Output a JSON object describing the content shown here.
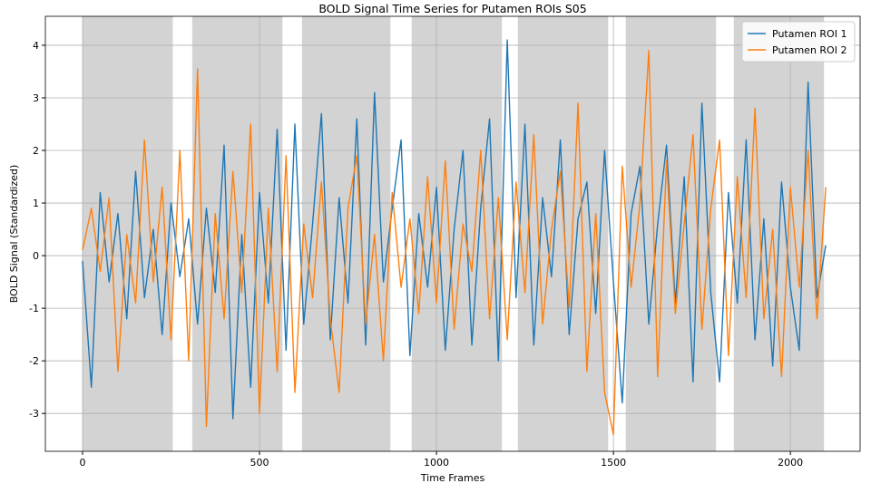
{
  "chart_data": {
    "type": "line",
    "title": "BOLD Signal Time Series for Putamen ROIs S05",
    "x_label": "Time Frames",
    "y_label": "BOLD Signal (Standardized)",
    "x": [
      0,
      25,
      50,
      75,
      100,
      125,
      150,
      175,
      200,
      225,
      250,
      275,
      300,
      325,
      350,
      375,
      400,
      425,
      450,
      475,
      500,
      525,
      550,
      575,
      600,
      625,
      650,
      675,
      700,
      725,
      750,
      775,
      800,
      825,
      850,
      875,
      900,
      925,
      950,
      975,
      1000,
      1025,
      1050,
      1075,
      1100,
      1125,
      1150,
      1175,
      1200,
      1225,
      1250,
      1275,
      1300,
      1325,
      1350,
      1375,
      1400,
      1425,
      1450,
      1475,
      1500,
      1525,
      1550,
      1575,
      1600,
      1625,
      1650,
      1675,
      1700,
      1725,
      1750,
      1775,
      1800,
      1825,
      1850,
      1875,
      1900,
      1925,
      1950,
      1975,
      2000,
      2025,
      2050,
      2075,
      2100
    ],
    "series": [
      {
        "name": "Putamen ROI 1",
        "color": "#1f77b4",
        "values": [
          -0.1,
          -2.5,
          1.2,
          -0.5,
          0.8,
          -1.2,
          1.6,
          -0.8,
          0.5,
          -1.5,
          1.0,
          -0.4,
          0.7,
          -1.3,
          0.9,
          -0.7,
          2.1,
          -3.1,
          0.4,
          -2.5,
          1.2,
          -0.9,
          2.4,
          -1.8,
          2.5,
          -1.3,
          0.6,
          2.7,
          -1.6,
          1.1,
          -0.9,
          2.6,
          -1.7,
          3.1,
          -0.5,
          0.9,
          2.2,
          -1.9,
          0.8,
          -0.6,
          1.3,
          -1.8,
          0.5,
          2.0,
          -1.7,
          0.9,
          2.6,
          -2.0,
          4.1,
          -0.8,
          2.5,
          -1.7,
          1.1,
          -0.4,
          2.2,
          -1.5,
          0.7,
          1.4,
          -1.1,
          2.0,
          -0.5,
          -2.8,
          0.8,
          1.7,
          -1.3,
          0.6,
          2.1,
          -0.9,
          1.5,
          -2.4,
          2.9,
          -0.7,
          -2.4,
          1.2,
          -0.9,
          2.2,
          -1.6,
          0.7,
          -2.1,
          1.4,
          -0.6,
          -1.8,
          3.3,
          -0.8,
          0.2
        ]
      },
      {
        "name": "Putamen ROI 2",
        "color": "#ff7f0e",
        "values": [
          0.1,
          0.9,
          -0.3,
          1.1,
          -2.2,
          0.4,
          -0.9,
          2.2,
          -0.5,
          1.3,
          -1.6,
          2.0,
          -2.0,
          3.55,
          -3.25,
          0.8,
          -1.2,
          1.6,
          -0.7,
          2.5,
          -3.0,
          0.9,
          -2.2,
          1.9,
          -2.6,
          0.6,
          -0.8,
          1.4,
          -1.2,
          -2.6,
          0.9,
          1.9,
          -1.3,
          0.4,
          -2.0,
          1.2,
          -0.6,
          0.7,
          -1.1,
          1.5,
          -0.9,
          1.8,
          -1.4,
          0.6,
          -0.3,
          2.0,
          -1.2,
          1.1,
          -1.6,
          1.4,
          -0.7,
          2.3,
          -1.3,
          0.5,
          1.6,
          -1.0,
          2.9,
          -2.2,
          0.8,
          -2.6,
          -3.4,
          1.7,
          -0.6,
          1.0,
          3.9,
          -2.3,
          1.8,
          -1.1,
          0.6,
          2.3,
          -1.4,
          0.9,
          2.2,
          -1.9,
          1.5,
          -0.8,
          2.8,
          -1.2,
          0.5,
          -2.3,
          1.3,
          -0.6,
          2.0,
          -1.2,
          1.3
        ]
      }
    ],
    "shaded_regions": [
      [
        0,
        255
      ],
      [
        310,
        565
      ],
      [
        620,
        870
      ],
      [
        930,
        1185
      ],
      [
        1230,
        1485
      ],
      [
        1535,
        1790
      ],
      [
        1840,
        2095
      ]
    ],
    "shaded_color": "#d3d3d3",
    "xlim": [
      -105,
      2197
    ],
    "ylim": [
      -3.72,
      4.55
    ],
    "xticks": [
      0,
      500,
      1000,
      1500,
      2000
    ],
    "yticks": [
      -3,
      -2,
      -1,
      0,
      1,
      2,
      3,
      4
    ],
    "grid": true,
    "legend": "upper right"
  }
}
